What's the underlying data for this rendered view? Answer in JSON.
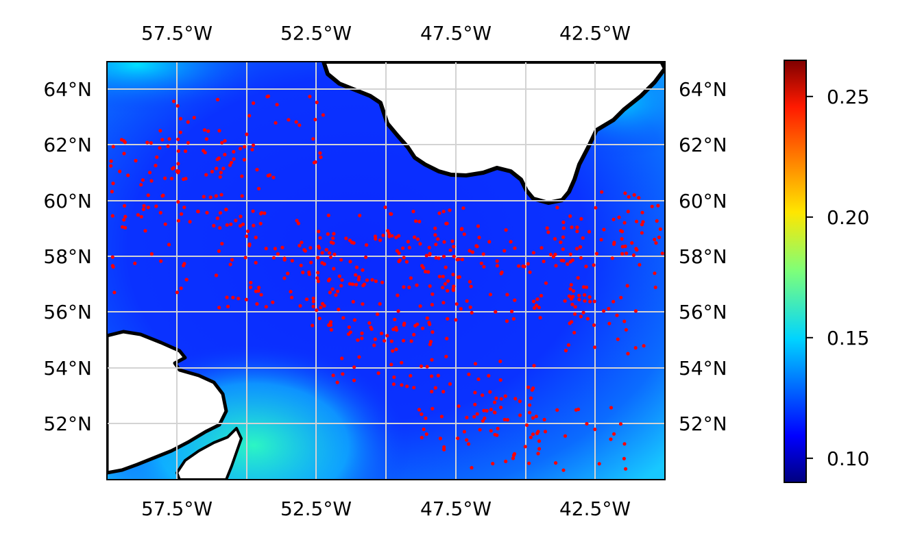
{
  "map": {
    "lon_range": [
      -60,
      -40
    ],
    "lat_range": [
      50,
      65
    ],
    "lon_ticks": [
      -57.5,
      -52.5,
      -47.5,
      -42.5
    ],
    "lat_ticks": [
      52,
      54,
      56,
      58,
      60,
      62,
      64
    ],
    "lon_tick_labels": [
      "57.5°W",
      "52.5°W",
      "47.5°W",
      "42.5°W"
    ],
    "lat_tick_labels": [
      "52°N",
      "54°N",
      "56°N",
      "58°N",
      "60°N",
      "62°N",
      "64°N"
    ],
    "gridlines": true,
    "field_colormap": "jet",
    "land_color": "#ffffff",
    "coastline_color": "#000000",
    "marker_color": "#ff0000",
    "land_regions": [
      "Greenland",
      "Labrador",
      "Newfoundland"
    ]
  },
  "colorbar": {
    "min": 0.09,
    "max": 0.265,
    "ticks": [
      0.1,
      0.15,
      0.2,
      0.25
    ],
    "tick_labels": [
      "0.10",
      "0.15",
      "0.20",
      "0.25"
    ],
    "colormap": "jet"
  }
}
